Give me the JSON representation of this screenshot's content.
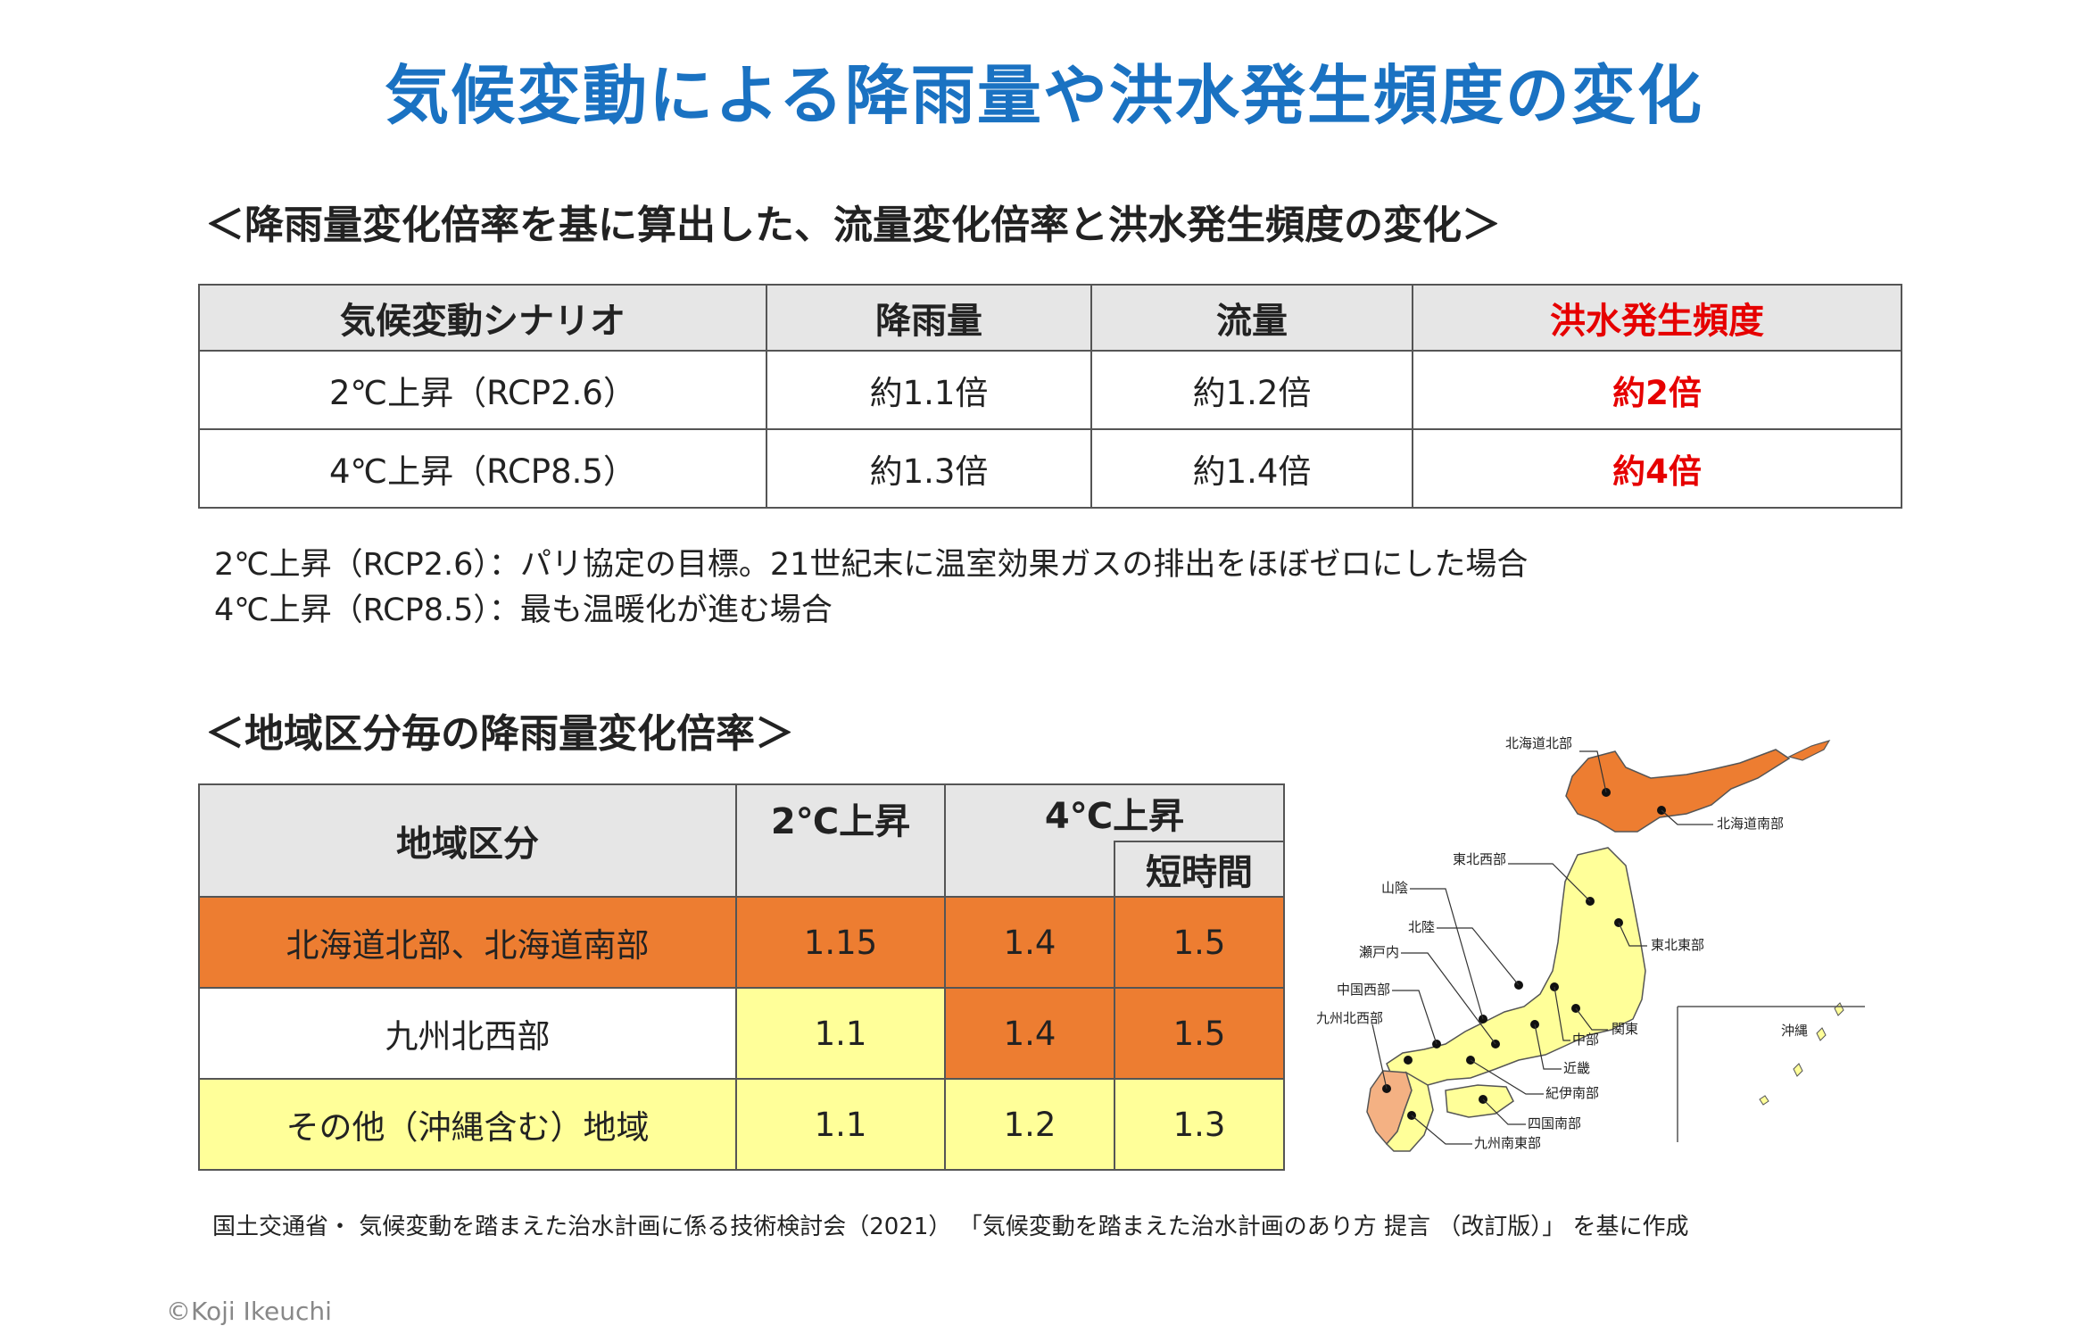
{
  "title": "気候変動による降雨量や洪水発生頻度の変化",
  "section1": {
    "heading": "＜降雨量変化倍率を基に算出した、流量変化倍率と洪水発生頻度の変化＞",
    "headers": [
      "気候変動シナリオ",
      "降雨量",
      "流量",
      "洪水発生頻度"
    ],
    "rows": [
      {
        "scenario": "2℃上昇（RCP2.6）",
        "rainfall": "約1.1倍",
        "flow": "約1.2倍",
        "frequency": "約2倍"
      },
      {
        "scenario": "4℃上昇（RCP8.5）",
        "rainfall": "約1.3倍",
        "flow": "約1.4倍",
        "frequency": "約4倍"
      }
    ],
    "notes": [
      "2℃上昇（RCP2.6）：パリ協定の目標。21世紀末に温室効果ガスの排出をほぼゼロにした場合",
      "4℃上昇（RCP8.5）：最も温暖化が進む場合"
    ]
  },
  "section2": {
    "heading": "＜地域区分毎の降雨量変化倍率＞",
    "headers": {
      "region": "地域区分",
      "two_degree": "2℃上昇",
      "four_degree": "4℃上昇",
      "short_term": "短時間"
    },
    "rows": [
      {
        "region": "北海道北部、北海道南部",
        "two": "1.15",
        "four": "1.4",
        "short": "1.5"
      },
      {
        "region": "九州北西部",
        "two": "1.1",
        "four": "1.4",
        "short": "1.5"
      },
      {
        "region": "その他（沖縄含む）地域",
        "two": "1.1",
        "four": "1.2",
        "short": "1.3"
      }
    ]
  },
  "map": {
    "labels": {
      "hokkaido_north": "北海道北部",
      "hokkaido_south": "北海道南部",
      "tohoku_west": "東北西部",
      "tohoku_east": "東北東部",
      "sanin": "山陰",
      "hokuriku": "北陸",
      "setouchi": "瀬戸内",
      "kanto": "関東",
      "chugoku_west": "中国西部",
      "chubu": "中部",
      "kyushu_northwest": "九州北西部",
      "kinki": "近畿",
      "kii_south": "紀伊南部",
      "shikoku_south": "四国南部",
      "kyushu_south": "九州南東部",
      "okinawa": "沖縄"
    },
    "colors": {
      "hokkaido": "#ed7d31",
      "kyushu_northwest": "#f4b183",
      "other": "#ffff99"
    }
  },
  "source": "国土交通省・ 気候変動を踏まえた治水計画に係る技術検討会（2021） 「気候変動を踏まえた治水計画のあり方 提言 （改訂版）」 を基に作成",
  "copyright": "©Koji Ikeuchi"
}
